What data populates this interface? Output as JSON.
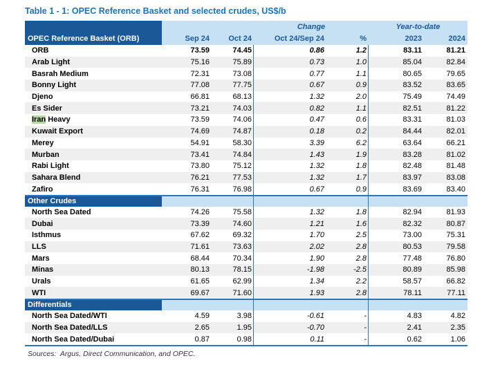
{
  "title": "Table 1 - 1: OPEC Reference Basket and selected crudes, US$/b",
  "footer": "Sources:  Argus, Direct Communication, and OPEC.",
  "header": {
    "name_label": "OPEC Reference Basket (ORB)",
    "change_label": "Change",
    "ytd_label": "Year-to-date",
    "columns": [
      "Sep 24",
      "Oct 24",
      "Oct 24/Sep 24",
      "%",
      "2023",
      "2024"
    ],
    "column_keys": [
      "sep24",
      "oct24",
      "change-abs",
      "change-pct",
      "ytd-2023",
      "ytd-2024"
    ]
  },
  "sections": [
    {
      "header_label": null,
      "rows": [
        {
          "name": "ORB",
          "bold": true,
          "values": [
            "73.59",
            "74.45",
            "0.86",
            "1.2",
            "83.11",
            "81.21"
          ]
        },
        {
          "name": "Arab Light",
          "values": [
            "75.16",
            "75.89",
            "0.73",
            "1.0",
            "85.04",
            "82.84"
          ]
        },
        {
          "name": "Basrah Medium",
          "values": [
            "72.31",
            "73.08",
            "0.77",
            "1.1",
            "80.65",
            "79.65"
          ]
        },
        {
          "name": "Bonny Light",
          "values": [
            "77.08",
            "77.75",
            "0.67",
            "0.9",
            "83.52",
            "83.65"
          ]
        },
        {
          "name": "Djeno",
          "values": [
            "66.81",
            "68.13",
            "1.32",
            "2.0",
            "75.49",
            "74.49"
          ]
        },
        {
          "name": "Es Sider",
          "values": [
            "73.21",
            "74.03",
            "0.82",
            "1.1",
            "82.51",
            "81.22"
          ]
        },
        {
          "name": "Iran Heavy",
          "highlight": "Iran",
          "name_rest": " Heavy",
          "values": [
            "73.59",
            "74.06",
            "0.47",
            "0.6",
            "83.31",
            "81.03"
          ]
        },
        {
          "name": "Kuwait Export",
          "values": [
            "74.69",
            "74.87",
            "0.18",
            "0.2",
            "84.44",
            "82.01"
          ]
        },
        {
          "name": "Merey",
          "values": [
            "54.91",
            "58.30",
            "3.39",
            "6.2",
            "63.64",
            "66.21"
          ]
        },
        {
          "name": "Murban",
          "values": [
            "73.41",
            "74.84",
            "1.43",
            "1.9",
            "83.28",
            "81.02"
          ]
        },
        {
          "name": "Rabi Light",
          "values": [
            "73.80",
            "75.12",
            "1.32",
            "1.8",
            "82.48",
            "81.48"
          ]
        },
        {
          "name": "Sahara Blend",
          "values": [
            "76.21",
            "77.53",
            "1.32",
            "1.7",
            "83.97",
            "83.08"
          ]
        },
        {
          "name": "Zafiro",
          "values": [
            "76.31",
            "76.98",
            "0.67",
            "0.9",
            "83.69",
            "83.40"
          ]
        }
      ]
    },
    {
      "header_label": "Other Crudes",
      "rows": [
        {
          "name": "North Sea Dated",
          "values": [
            "74.26",
            "75.58",
            "1.32",
            "1.8",
            "82.94",
            "81.93"
          ]
        },
        {
          "name": "Dubai",
          "values": [
            "73.39",
            "74.60",
            "1.21",
            "1.6",
            "82.32",
            "80.87"
          ]
        },
        {
          "name": "Isthmus",
          "values": [
            "67.62",
            "69.32",
            "1.70",
            "2.5",
            "73.00",
            "75.31"
          ]
        },
        {
          "name": "LLS",
          "values": [
            "71.61",
            "73.63",
            "2.02",
            "2.8",
            "80.53",
            "79.58"
          ]
        },
        {
          "name": "Mars",
          "values": [
            "68.44",
            "70.34",
            "1.90",
            "2.8",
            "77.48",
            "76.80"
          ]
        },
        {
          "name": "Minas",
          "values": [
            "80.13",
            "78.15",
            "-1.98",
            "-2.5",
            "80.89",
            "85.98"
          ]
        },
        {
          "name": "Urals",
          "values": [
            "61.65",
            "62.99",
            "1.34",
            "2.2",
            "58.57",
            "66.82"
          ]
        },
        {
          "name": "WTI",
          "values": [
            "69.67",
            "71.60",
            "1.93",
            "2.8",
            "78.11",
            "77.11"
          ]
        }
      ]
    },
    {
      "header_label": "Differentials",
      "rows": [
        {
          "name": "North Sea Dated/WTI",
          "values": [
            "4.59",
            "3.98",
            "-0.61",
            "-",
            "4.83",
            "4.82"
          ]
        },
        {
          "name": "North Sea Dated/LLS",
          "values": [
            "2.65",
            "1.95",
            "-0.70",
            "-",
            "2.41",
            "2.35"
          ]
        },
        {
          "name": "North Sea Dated/Dubai",
          "values": [
            "0.87",
            "0.98",
            "0.11",
            "-",
            "0.62",
            "1.06"
          ]
        }
      ]
    }
  ],
  "colors": {
    "title_blue": "#1A73BE",
    "header_dark_blue": "#1B5898",
    "header_light_blue": "#C6E0F4",
    "line_blue": "#2E75B6",
    "alt_row_gray": "#EFEFEF",
    "highlight_green": "#B7D7A2"
  }
}
